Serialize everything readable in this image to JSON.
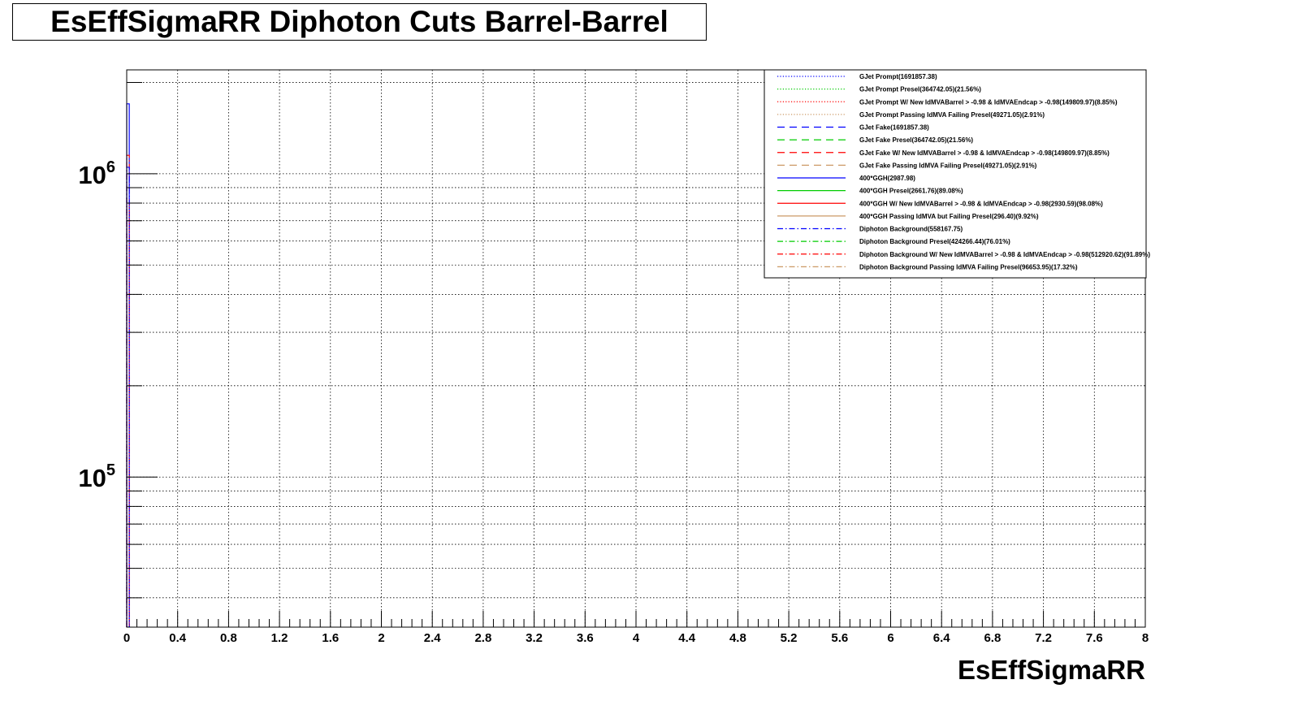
{
  "chart_data": {
    "type": "line",
    "title": "EsEffSigmaRR Diphoton Cuts Barrel-Barrel",
    "xlabel": "EsEffSigmaRR",
    "ylabel": "",
    "xlim": [
      0,
      8
    ],
    "ylim": [
      32000,
      2200000
    ],
    "log_y": true,
    "grid": true,
    "x_ticks": [
      "0",
      "0.4",
      "0.8",
      "1.2",
      "1.6",
      "2",
      "2.4",
      "2.8",
      "3.2",
      "3.6",
      "4",
      "4.4",
      "4.8",
      "5.2",
      "5.6",
      "6",
      "6.4",
      "6.8",
      "7.2",
      "7.6",
      "8"
    ],
    "y_tick_labels": [
      {
        "base": "10",
        "exp": "6",
        "value": 1000000
      },
      {
        "base": "10",
        "exp": "5",
        "value": 100000
      }
    ],
    "legend_position": "top-right",
    "series": [
      {
        "name": "GJet Prompt(1691857.38)",
        "color": "#0000ff",
        "style": "dotted"
      },
      {
        "name": "GJet Prompt Presel(364742.05)(21.56%)",
        "color": "#00cc00",
        "style": "dotted"
      },
      {
        "name": "GJet Prompt W/ New IdMVABarrel > -0.98 & IdMVAEndcap > -0.98(149809.97)(8.85%)",
        "color": "#ff0000",
        "style": "dotted"
      },
      {
        "name": "GJet Prompt Passing IdMVA Failing Presel(49271.05)(2.91%)",
        "color": "#cc9966",
        "style": "dotted"
      },
      {
        "name": "GJet Fake(1691857.38)",
        "color": "#0000ff",
        "style": "dashed"
      },
      {
        "name": "GJet Fake Presel(364742.05)(21.56%)",
        "color": "#00cc00",
        "style": "dashed"
      },
      {
        "name": "GJet Fake W/ New IdMVABarrel > -0.98 & IdMVAEndcap > -0.98(149809.97)(8.85%)",
        "color": "#ff0000",
        "style": "dashed"
      },
      {
        "name": "GJet Fake Passing IdMVA Failing Presel(49271.05)(2.91%)",
        "color": "#cc9966",
        "style": "dashed"
      },
      {
        "name": "400*GGH(2987.98)",
        "color": "#0000ff",
        "style": "solid"
      },
      {
        "name": "400*GGH Presel(2661.76)(89.08%)",
        "color": "#00cc00",
        "style": "solid"
      },
      {
        "name": "400*GGH W/ New IdMVABarrel > -0.98 & IdMVAEndcap > -0.98(2930.59)(98.08%)",
        "color": "#ff0000",
        "style": "solid"
      },
      {
        "name": "400*GGH Passing IdMVA but Failing Presel(296.40)(9.92%)",
        "color": "#cc9966",
        "style": "solid"
      },
      {
        "name": "Diphoton Background(558167.75)",
        "color": "#0000ff",
        "style": "dashdot"
      },
      {
        "name": "Diphoton Background Presel(424266.44)(76.01%)",
        "color": "#00cc00",
        "style": "dashdot"
      },
      {
        "name": "Diphoton Background W/ New IdMVABarrel > -0.98 & IdMVAEndcap > -0.98(512920.62)(91.89%)",
        "color": "#ff0000",
        "style": "dashdot"
      },
      {
        "name": "Diphoton Background Passing IdMVA Failing Presel(96653.95)(17.32%)",
        "color": "#cc9966",
        "style": "dashdot"
      }
    ],
    "spike_bins": [
      {
        "x": 0.0,
        "width": 0.02,
        "series_index": 8,
        "y": 1700000
      },
      {
        "x": 0.0,
        "width": 0.02,
        "series_index": 14,
        "y": 1150000
      },
      {
        "x": 0.0,
        "width": 0.02,
        "series_index": 12,
        "y": 1050000
      },
      {
        "x": 0.0,
        "width": 0.02,
        "series_index": 0,
        "y": 1000000
      },
      {
        "x": 0.0,
        "width": 0.02,
        "series_index": 2,
        "y": 800000
      }
    ]
  }
}
